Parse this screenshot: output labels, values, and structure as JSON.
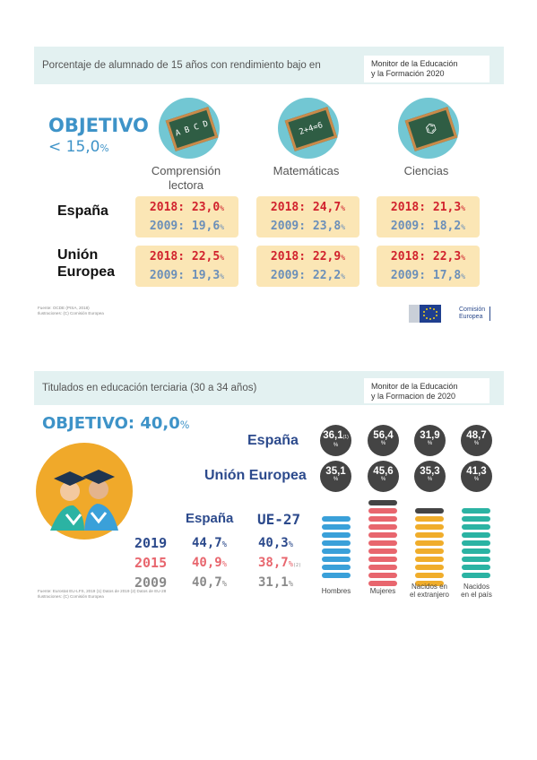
{
  "panel1": {
    "title": "Porcentaje de alumnado de 15 años con rendimiento bajo en",
    "monitor": [
      "Monitor de la Educación",
      "y la Formación 2020"
    ],
    "objective_label": "OBJETIVO",
    "objective_value": "< 15,0",
    "objective_unit": "%",
    "subjects": [
      "Comprensión",
      "lectora",
      "Matemáticas",
      "Ciencias"
    ],
    "board_texts": [
      "A B C D",
      "2+4=6",
      "⌬"
    ],
    "rows": [
      {
        "label_lines": [
          "España"
        ],
        "cells": [
          {
            "a": "2018: 23,0",
            "b": "2009: 19,6"
          },
          {
            "a": "2018: 24,7",
            "b": "2009: 23,8"
          },
          {
            "a": "2018: 21,3",
            "b": "2009: 18,2"
          }
        ]
      },
      {
        "label_lines": [
          "Unión",
          "Europea"
        ],
        "cells": [
          {
            "a": "2018: 22,5",
            "b": "2009: 19,3"
          },
          {
            "a": "2018: 22,9",
            "b": "2009: 22,2"
          },
          {
            "a": "2018: 22,3",
            "b": "2009: 17,8"
          }
        ]
      }
    ],
    "unit": "%",
    "source_lines": [
      "Fuente: OCDE (PISA, 2018)",
      "Ilustraciones: (C) Comisión Europea"
    ],
    "logo_text": [
      "Comisión",
      "Europea"
    ]
  },
  "panel2": {
    "title": "Titulados en educación terciaria (30 a 34 años)",
    "monitor": [
      "Monitor de la Educación",
      "y la Formacion de 2020"
    ],
    "objective_label": "OBJETIVO: 40,0",
    "objective_unit": "%",
    "espana_label": "España",
    "ue_label": "Unión Europea",
    "bubbles_es": [
      {
        "v": "36,1",
        "sup": "(1)"
      },
      {
        "v": "56,4",
        "sup": ""
      },
      {
        "v": "31,9",
        "sup": ""
      },
      {
        "v": "48,7",
        "sup": ""
      }
    ],
    "bubbles_ue": [
      {
        "v": "35,1",
        "sup": ""
      },
      {
        "v": "45,6",
        "sup": ""
      },
      {
        "v": "35,3",
        "sup": ""
      },
      {
        "v": "41,3",
        "sup": ""
      }
    ],
    "table_headers": [
      "España",
      "UE-27"
    ],
    "table_rows": [
      {
        "year": "2019",
        "es": "44,7",
        "ue": "40,3",
        "note": ""
      },
      {
        "year": "2015",
        "es": "40,9",
        "ue": "38,7",
        "note": "(2)"
      },
      {
        "year": "2009",
        "es": "40,7",
        "ue": "31,1",
        "note": ""
      }
    ],
    "unit": "%",
    "categories": [
      "Hombres",
      "Mujeres",
      "Nacidos en el extranjero",
      "Nacidos en el país"
    ],
    "cat_label_lines": [
      [
        "Hombres"
      ],
      [
        "Mujeres"
      ],
      [
        "Nacidos en",
        "el extranjero"
      ],
      [
        "Nacidos",
        "en el país"
      ]
    ],
    "source_lines": [
      "Fuente: Eurostat EU-LFS, 2019   (1) Datos de 2019 (2) Datos de EU-28",
      "Ilustraciones: (C) Comisión Europea"
    ],
    "colors": {
      "hombres": "#3aa0d9",
      "mujeres": "#e8666e",
      "extranjero": "#f0ad2b",
      "pais": "#2bb3a3"
    }
  }
}
